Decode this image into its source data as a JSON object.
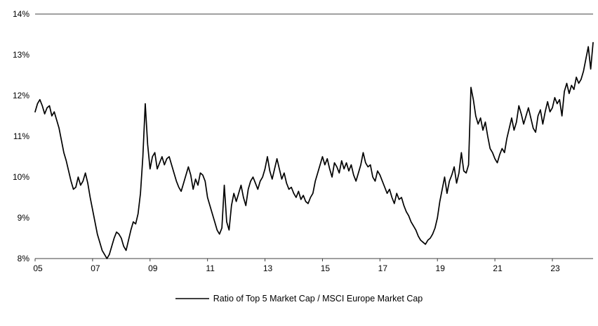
{
  "chart_data": {
    "type": "line",
    "title": "",
    "legend_label": "Ratio of Top 5 Market Cap / MSCI Europe Market Cap",
    "x_start_year": 2005,
    "frequency": "monthly",
    "ylim": [
      8,
      14
    ],
    "y_tick_labels": [
      "8%",
      "9%",
      "10%",
      "11%",
      "12%",
      "13%",
      "14%"
    ],
    "x_ticks": [
      {
        "year": 2005,
        "label": "05"
      },
      {
        "year": 2007,
        "label": "07"
      },
      {
        "year": 2009,
        "label": "09"
      },
      {
        "year": 2011,
        "label": "11"
      },
      {
        "year": 2013,
        "label": "13"
      },
      {
        "year": 2015,
        "label": "15"
      },
      {
        "year": 2017,
        "label": "17"
      },
      {
        "year": 2019,
        "label": "19"
      },
      {
        "year": 2021,
        "label": "21"
      },
      {
        "year": 2023,
        "label": "23"
      }
    ],
    "line_color": "#000000",
    "axis_color": "#404040",
    "grid": false,
    "legend_position": "bottom",
    "values": [
      11.6,
      11.8,
      11.9,
      11.75,
      11.55,
      11.7,
      11.75,
      11.5,
      11.6,
      11.4,
      11.2,
      10.9,
      10.6,
      10.4,
      10.15,
      9.9,
      9.7,
      9.75,
      10.0,
      9.8,
      9.9,
      10.1,
      9.85,
      9.5,
      9.2,
      8.9,
      8.6,
      8.4,
      8.2,
      8.1,
      8.0,
      8.1,
      8.3,
      8.5,
      8.65,
      8.6,
      8.5,
      8.3,
      8.2,
      8.45,
      8.7,
      8.9,
      8.85,
      9.1,
      9.6,
      10.5,
      11.8,
      10.8,
      10.2,
      10.5,
      10.6,
      10.2,
      10.35,
      10.5,
      10.3,
      10.45,
      10.5,
      10.3,
      10.1,
      9.9,
      9.75,
      9.65,
      9.85,
      10.05,
      10.25,
      10.05,
      9.7,
      9.95,
      9.8,
      10.1,
      10.05,
      9.9,
      9.5,
      9.3,
      9.1,
      8.9,
      8.7,
      8.6,
      8.75,
      9.8,
      8.9,
      8.7,
      9.3,
      9.6,
      9.4,
      9.6,
      9.8,
      9.5,
      9.3,
      9.7,
      9.9,
      10.0,
      9.85,
      9.7,
      9.9,
      10.0,
      10.2,
      10.5,
      10.15,
      9.95,
      10.2,
      10.45,
      10.2,
      9.95,
      10.1,
      9.85,
      9.7,
      9.75,
      9.6,
      9.5,
      9.65,
      9.45,
      9.55,
      9.4,
      9.35,
      9.5,
      9.6,
      9.9,
      10.1,
      10.3,
      10.5,
      10.3,
      10.45,
      10.2,
      10.0,
      10.35,
      10.25,
      10.1,
      10.4,
      10.2,
      10.35,
      10.15,
      10.3,
      10.05,
      9.9,
      10.1,
      10.3,
      10.6,
      10.35,
      10.25,
      10.3,
      10.0,
      9.9,
      10.15,
      10.05,
      9.9,
      9.75,
      9.6,
      9.7,
      9.5,
      9.35,
      9.6,
      9.45,
      9.5,
      9.3,
      9.15,
      9.05,
      8.9,
      8.8,
      8.7,
      8.55,
      8.45,
      8.4,
      8.35,
      8.45,
      8.5,
      8.6,
      8.75,
      9.0,
      9.4,
      9.7,
      10.0,
      9.6,
      9.9,
      10.05,
      10.25,
      9.85,
      10.1,
      10.6,
      10.15,
      10.1,
      10.3,
      12.2,
      11.9,
      11.5,
      11.3,
      11.45,
      11.15,
      11.35,
      11.0,
      10.7,
      10.6,
      10.45,
      10.35,
      10.55,
      10.7,
      10.6,
      10.95,
      11.2,
      11.45,
      11.15,
      11.35,
      11.75,
      11.55,
      11.3,
      11.5,
      11.7,
      11.45,
      11.2,
      11.1,
      11.5,
      11.65,
      11.3,
      11.6,
      11.85,
      11.6,
      11.7,
      11.95,
      11.8,
      11.9,
      11.5,
      12.1,
      12.3,
      12.05,
      12.25,
      12.15,
      12.45,
      12.3,
      12.4,
      12.6,
      12.9,
      13.2,
      12.65,
      13.3
    ]
  }
}
